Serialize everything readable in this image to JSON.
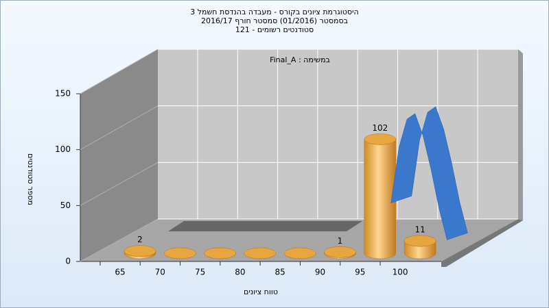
{
  "chart_data": {
    "type": "bar",
    "title": [
      "היסטוגרמת ציונים בקורס - מעבדה בהנדסת חשמל 3",
      "בסמסטר  (01/2016)  סמסטר חורף 2016/17",
      "סטודנטים רשומים - 121"
    ],
    "annotation": "במשימה : Final_A",
    "x_label": "טווח ציונים",
    "y_label": "מספר סטודנטים",
    "categories": [
      "65",
      "70",
      "75",
      "80",
      "85",
      "90",
      "95",
      "100"
    ],
    "values": [
      2,
      0,
      0,
      0,
      0,
      1,
      102,
      11
    ],
    "color": "#e8a640",
    "ylim": [
      0,
      150
    ],
    "yticks": [
      0,
      50,
      100,
      150
    ],
    "grid": true,
    "curve": {
      "color": "#3a78cc",
      "x": [
        95,
        96,
        97,
        98,
        99,
        100,
        101,
        102
      ],
      "values": [
        45,
        95,
        120,
        125,
        105,
        75,
        40,
        12
      ]
    }
  }
}
